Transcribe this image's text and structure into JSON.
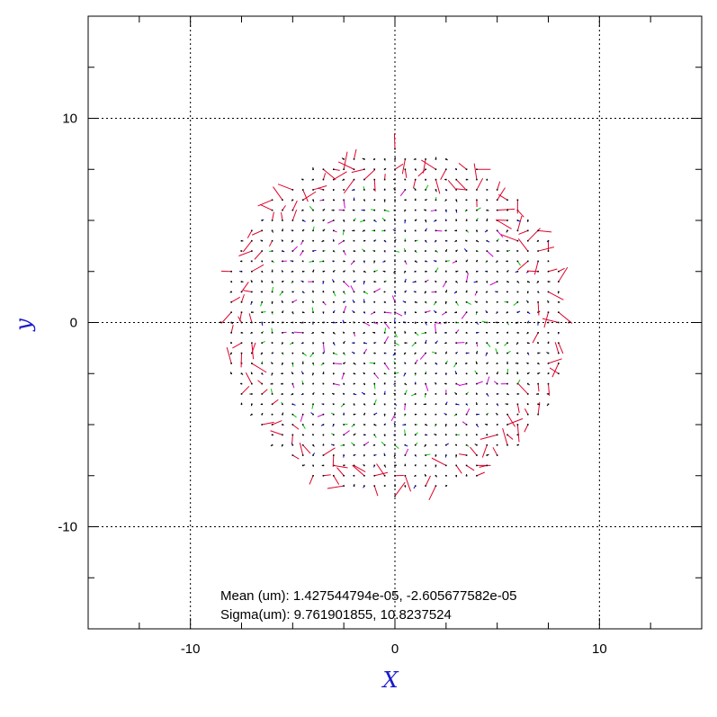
{
  "chart_data": {
    "type": "vector_field",
    "xlabel": "X",
    "ylabel": "y",
    "xlim": [
      -15,
      15
    ],
    "ylim": [
      -15,
      15
    ],
    "grid": true,
    "grid_style": "dotted",
    "xticks": [
      -10,
      0,
      10
    ],
    "yticks": [
      -10,
      0,
      10
    ],
    "xtick_labels": [
      "-10",
      "0",
      "10"
    ],
    "ytick_labels": [
      "-10",
      "0",
      "10"
    ],
    "field": {
      "shape": "circle",
      "center": [
        0,
        0
      ],
      "radius": 8.5,
      "spacing": 0.5
    },
    "colors": {
      "vector_large": "#e0002a",
      "vector_medium": "#00c800",
      "vector_small": "#0000ff",
      "vector_tiny": "#000000",
      "vector_alt": "#d000d0",
      "axis_title": "#1a1acc",
      "grid": "#000000"
    },
    "stats": {
      "mean_line": "Mean (um): 1.427544794e-05, -2.605677582e-05",
      "sigma_line": "Sigma(um): 9.761901855, 10.8237524"
    }
  }
}
